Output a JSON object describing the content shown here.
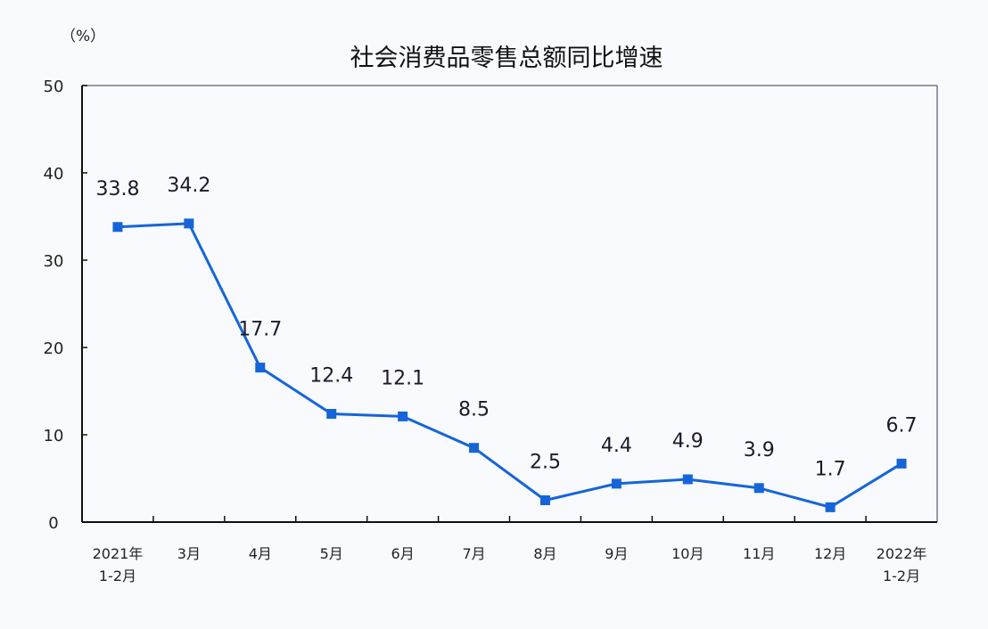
{
  "chart_data": {
    "type": "line",
    "title": "社会消费品零售总额同比增速",
    "ylabel": "（%）",
    "xlabel": "",
    "ylim": [
      0,
      50
    ],
    "yticks": [
      0,
      10,
      20,
      30,
      40,
      50
    ],
    "grid": false,
    "legend": null,
    "categories": [
      [
        "2021年",
        "1-2月"
      ],
      [
        "3月"
      ],
      [
        "4月"
      ],
      [
        "5月"
      ],
      [
        "6月"
      ],
      [
        "7月"
      ],
      [
        "8月"
      ],
      [
        "9月"
      ],
      [
        "10月"
      ],
      [
        "11月"
      ],
      [
        "12月"
      ],
      [
        "2022年",
        "1-2月"
      ]
    ],
    "series": [
      {
        "name": "社会消费品零售总额同比增速",
        "color": "#1565d8",
        "values": [
          33.8,
          34.2,
          17.7,
          12.4,
          12.1,
          8.5,
          2.5,
          4.4,
          4.9,
          3.9,
          1.7,
          6.7
        ],
        "labels": [
          "33.8",
          "34.2",
          "17.7",
          "12.4",
          "12.1",
          "8.5",
          "2.5",
          "4.4",
          "4.9",
          "3.9",
          "1.7",
          "6.7"
        ]
      }
    ]
  },
  "colors": {
    "background": "#f8fafd",
    "axis": "#111111",
    "frame": "#7a7590",
    "line": "#1565d8"
  }
}
